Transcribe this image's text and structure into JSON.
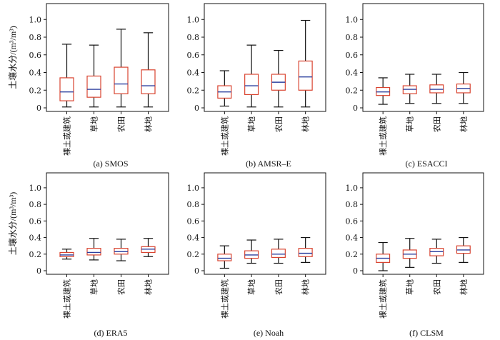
{
  "figure": {
    "ylabel": "土壤水分/(m³/m³)",
    "categories": [
      "裸土或建筑",
      "草地",
      "农田",
      "林地"
    ],
    "y_ticks": [
      "0",
      "0.2",
      "0.4",
      "0.6",
      "0.8",
      "1.0"
    ],
    "colors": {
      "box": "#d9432f",
      "median": "#2b3f9e",
      "whisker": "#111111",
      "axis": "#111111"
    }
  },
  "chart_data": [
    {
      "type": "box",
      "caption": "(a) SMOS",
      "ylim": [
        0,
        1.18
      ],
      "categories": [
        "裸土或建筑",
        "草地",
        "农田",
        "林地"
      ],
      "boxes": [
        {
          "min": 0.01,
          "q1": 0.08,
          "median": 0.18,
          "q3": 0.34,
          "max": 0.72
        },
        {
          "min": 0.01,
          "q1": 0.12,
          "median": 0.21,
          "q3": 0.36,
          "max": 0.71
        },
        {
          "min": 0.01,
          "q1": 0.16,
          "median": 0.27,
          "q3": 0.46,
          "max": 0.89
        },
        {
          "min": 0.01,
          "q1": 0.16,
          "median": 0.25,
          "q3": 0.43,
          "max": 0.85
        }
      ]
    },
    {
      "type": "box",
      "caption": "(b) AMSR–E",
      "ylim": [
        0,
        1.18
      ],
      "categories": [
        "裸土或建筑",
        "草地",
        "农田",
        "林地"
      ],
      "boxes": [
        {
          "min": 0.02,
          "q1": 0.11,
          "median": 0.18,
          "q3": 0.25,
          "max": 0.42
        },
        {
          "min": 0.01,
          "q1": 0.15,
          "median": 0.25,
          "q3": 0.38,
          "max": 0.71
        },
        {
          "min": 0.01,
          "q1": 0.2,
          "median": 0.29,
          "q3": 0.38,
          "max": 0.65
        },
        {
          "min": 0.01,
          "q1": 0.2,
          "median": 0.35,
          "q3": 0.53,
          "max": 0.99
        }
      ]
    },
    {
      "type": "box",
      "caption": "(c) ESACCI",
      "ylim": [
        0,
        1.18
      ],
      "categories": [
        "裸土或建筑",
        "草地",
        "农田",
        "林地"
      ],
      "boxes": [
        {
          "min": 0.04,
          "q1": 0.14,
          "median": 0.18,
          "q3": 0.23,
          "max": 0.34
        },
        {
          "min": 0.05,
          "q1": 0.16,
          "median": 0.21,
          "q3": 0.25,
          "max": 0.38
        },
        {
          "min": 0.05,
          "q1": 0.17,
          "median": 0.21,
          "q3": 0.26,
          "max": 0.38
        },
        {
          "min": 0.05,
          "q1": 0.17,
          "median": 0.22,
          "q3": 0.27,
          "max": 0.4
        }
      ]
    },
    {
      "type": "box",
      "caption": "(d) ERA5",
      "ylim": [
        0,
        1.18
      ],
      "categories": [
        "裸土或建筑",
        "草地",
        "农田",
        "林地"
      ],
      "boxes": [
        {
          "min": 0.14,
          "q1": 0.17,
          "median": 0.19,
          "q3": 0.22,
          "max": 0.26
        },
        {
          "min": 0.13,
          "q1": 0.19,
          "median": 0.22,
          "q3": 0.27,
          "max": 0.39
        },
        {
          "min": 0.12,
          "q1": 0.2,
          "median": 0.23,
          "q3": 0.27,
          "max": 0.38
        },
        {
          "min": 0.17,
          "q1": 0.22,
          "median": 0.26,
          "q3": 0.29,
          "max": 0.39
        }
      ]
    },
    {
      "type": "box",
      "caption": "(e) Noah",
      "ylim": [
        0,
        1.18
      ],
      "categories": [
        "裸土或建筑",
        "草地",
        "农田",
        "林地"
      ],
      "boxes": [
        {
          "min": 0.03,
          "q1": 0.12,
          "median": 0.15,
          "q3": 0.2,
          "max": 0.3
        },
        {
          "min": 0.09,
          "q1": 0.15,
          "median": 0.19,
          "q3": 0.24,
          "max": 0.37
        },
        {
          "min": 0.09,
          "q1": 0.16,
          "median": 0.2,
          "q3": 0.26,
          "max": 0.38
        },
        {
          "min": 0.1,
          "q1": 0.17,
          "median": 0.21,
          "q3": 0.27,
          "max": 0.4
        }
      ]
    },
    {
      "type": "box",
      "caption": "(f) CLSM",
      "ylim": [
        0,
        1.18
      ],
      "categories": [
        "裸土或建筑",
        "草地",
        "农田",
        "林地"
      ],
      "boxes": [
        {
          "min": 0.0,
          "q1": 0.1,
          "median": 0.15,
          "q3": 0.2,
          "max": 0.34
        },
        {
          "min": 0.04,
          "q1": 0.15,
          "median": 0.2,
          "q3": 0.25,
          "max": 0.39
        },
        {
          "min": 0.09,
          "q1": 0.18,
          "median": 0.23,
          "q3": 0.27,
          "max": 0.38
        },
        {
          "min": 0.1,
          "q1": 0.21,
          "median": 0.25,
          "q3": 0.3,
          "max": 0.4
        }
      ]
    }
  ]
}
